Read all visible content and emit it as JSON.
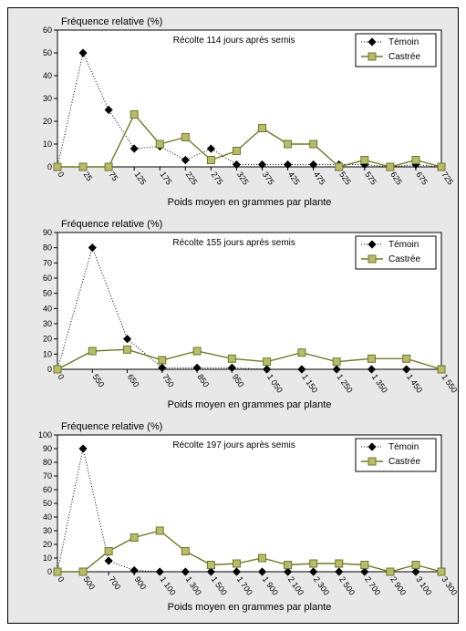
{
  "layout": {
    "background": "#e8e8e8",
    "plot_background": "#ffffff",
    "border_color": "#000000"
  },
  "series_style": {
    "temoin": {
      "label": "Témoin",
      "marker": "diamond",
      "marker_fill": "#000000",
      "marker_stroke": "#000000",
      "marker_size": 4,
      "line_color": "#000000",
      "line_dash": "1 2",
      "line_width": 1
    },
    "castree": {
      "label": "Castrée",
      "marker": "square",
      "marker_fill": "#b8bb6a",
      "marker_stroke": "#6b7a2a",
      "marker_size": 4,
      "line_color": "#6b7a2a",
      "line_dash": "none",
      "line_width": 1.4
    }
  },
  "common": {
    "y_title": "Fréquence relative (%)",
    "x_title": "Poids moyen en grammes par plante",
    "tick_fontsize": 9,
    "label_fontsize": 11,
    "subtitle_fontsize": 10,
    "ytick_color": "#000000"
  },
  "charts": [
    {
      "subtitle": "Récolte 114 jours après semis",
      "x_categories": [
        "0",
        "25",
        "75",
        "125",
        "175",
        "225",
        "275",
        "325",
        "375",
        "425",
        "475",
        "525",
        "575",
        "625",
        "675",
        "725"
      ],
      "x_label_rotate": 55,
      "ylim": [
        0,
        60
      ],
      "ytick_step": 10,
      "series": {
        "temoin": [
          0,
          50,
          25,
          8,
          9,
          3,
          8,
          1,
          1,
          1,
          1,
          1,
          1,
          0,
          1,
          0
        ],
        "castree": [
          0,
          0,
          0,
          23,
          10,
          13,
          3,
          7,
          17,
          10,
          10,
          0,
          3,
          0,
          3,
          0
        ]
      }
    },
    {
      "subtitle": "Récolte 155 jours après semis",
      "x_categories": [
        "0",
        "550",
        "650",
        "750",
        "850",
        "950",
        "1 050",
        "1 150",
        "1 250",
        "1 350",
        "1 450",
        "1 550"
      ],
      "x_label_rotate": 55,
      "ylim": [
        0,
        90
      ],
      "ytick_step": 10,
      "series": {
        "temoin": [
          0,
          80,
          20,
          1,
          1,
          1,
          0,
          0,
          0,
          0,
          0,
          0
        ],
        "castree": [
          0,
          12,
          13,
          6,
          12,
          7,
          5,
          11,
          5,
          7,
          7,
          0
        ]
      }
    },
    {
      "subtitle": "Récolte 197 jours après semis",
      "x_categories": [
        "0",
        "500",
        "700",
        "900",
        "1 100",
        "1 300",
        "1 500",
        "1 700",
        "1 900",
        "2 100",
        "2 300",
        "2 500",
        "2 700",
        "2 900",
        "3 100",
        "3 300"
      ],
      "x_label_rotate": 55,
      "ylim": [
        0,
        100
      ],
      "ytick_step": 10,
      "series": {
        "temoin": [
          0,
          90,
          8,
          1,
          0,
          0,
          0,
          0,
          0,
          0,
          0,
          0,
          0,
          0,
          0,
          0
        ],
        "castree": [
          0,
          0,
          15,
          25,
          30,
          15,
          5,
          6,
          10,
          5,
          6,
          6,
          5,
          0,
          5,
          0
        ]
      }
    }
  ]
}
